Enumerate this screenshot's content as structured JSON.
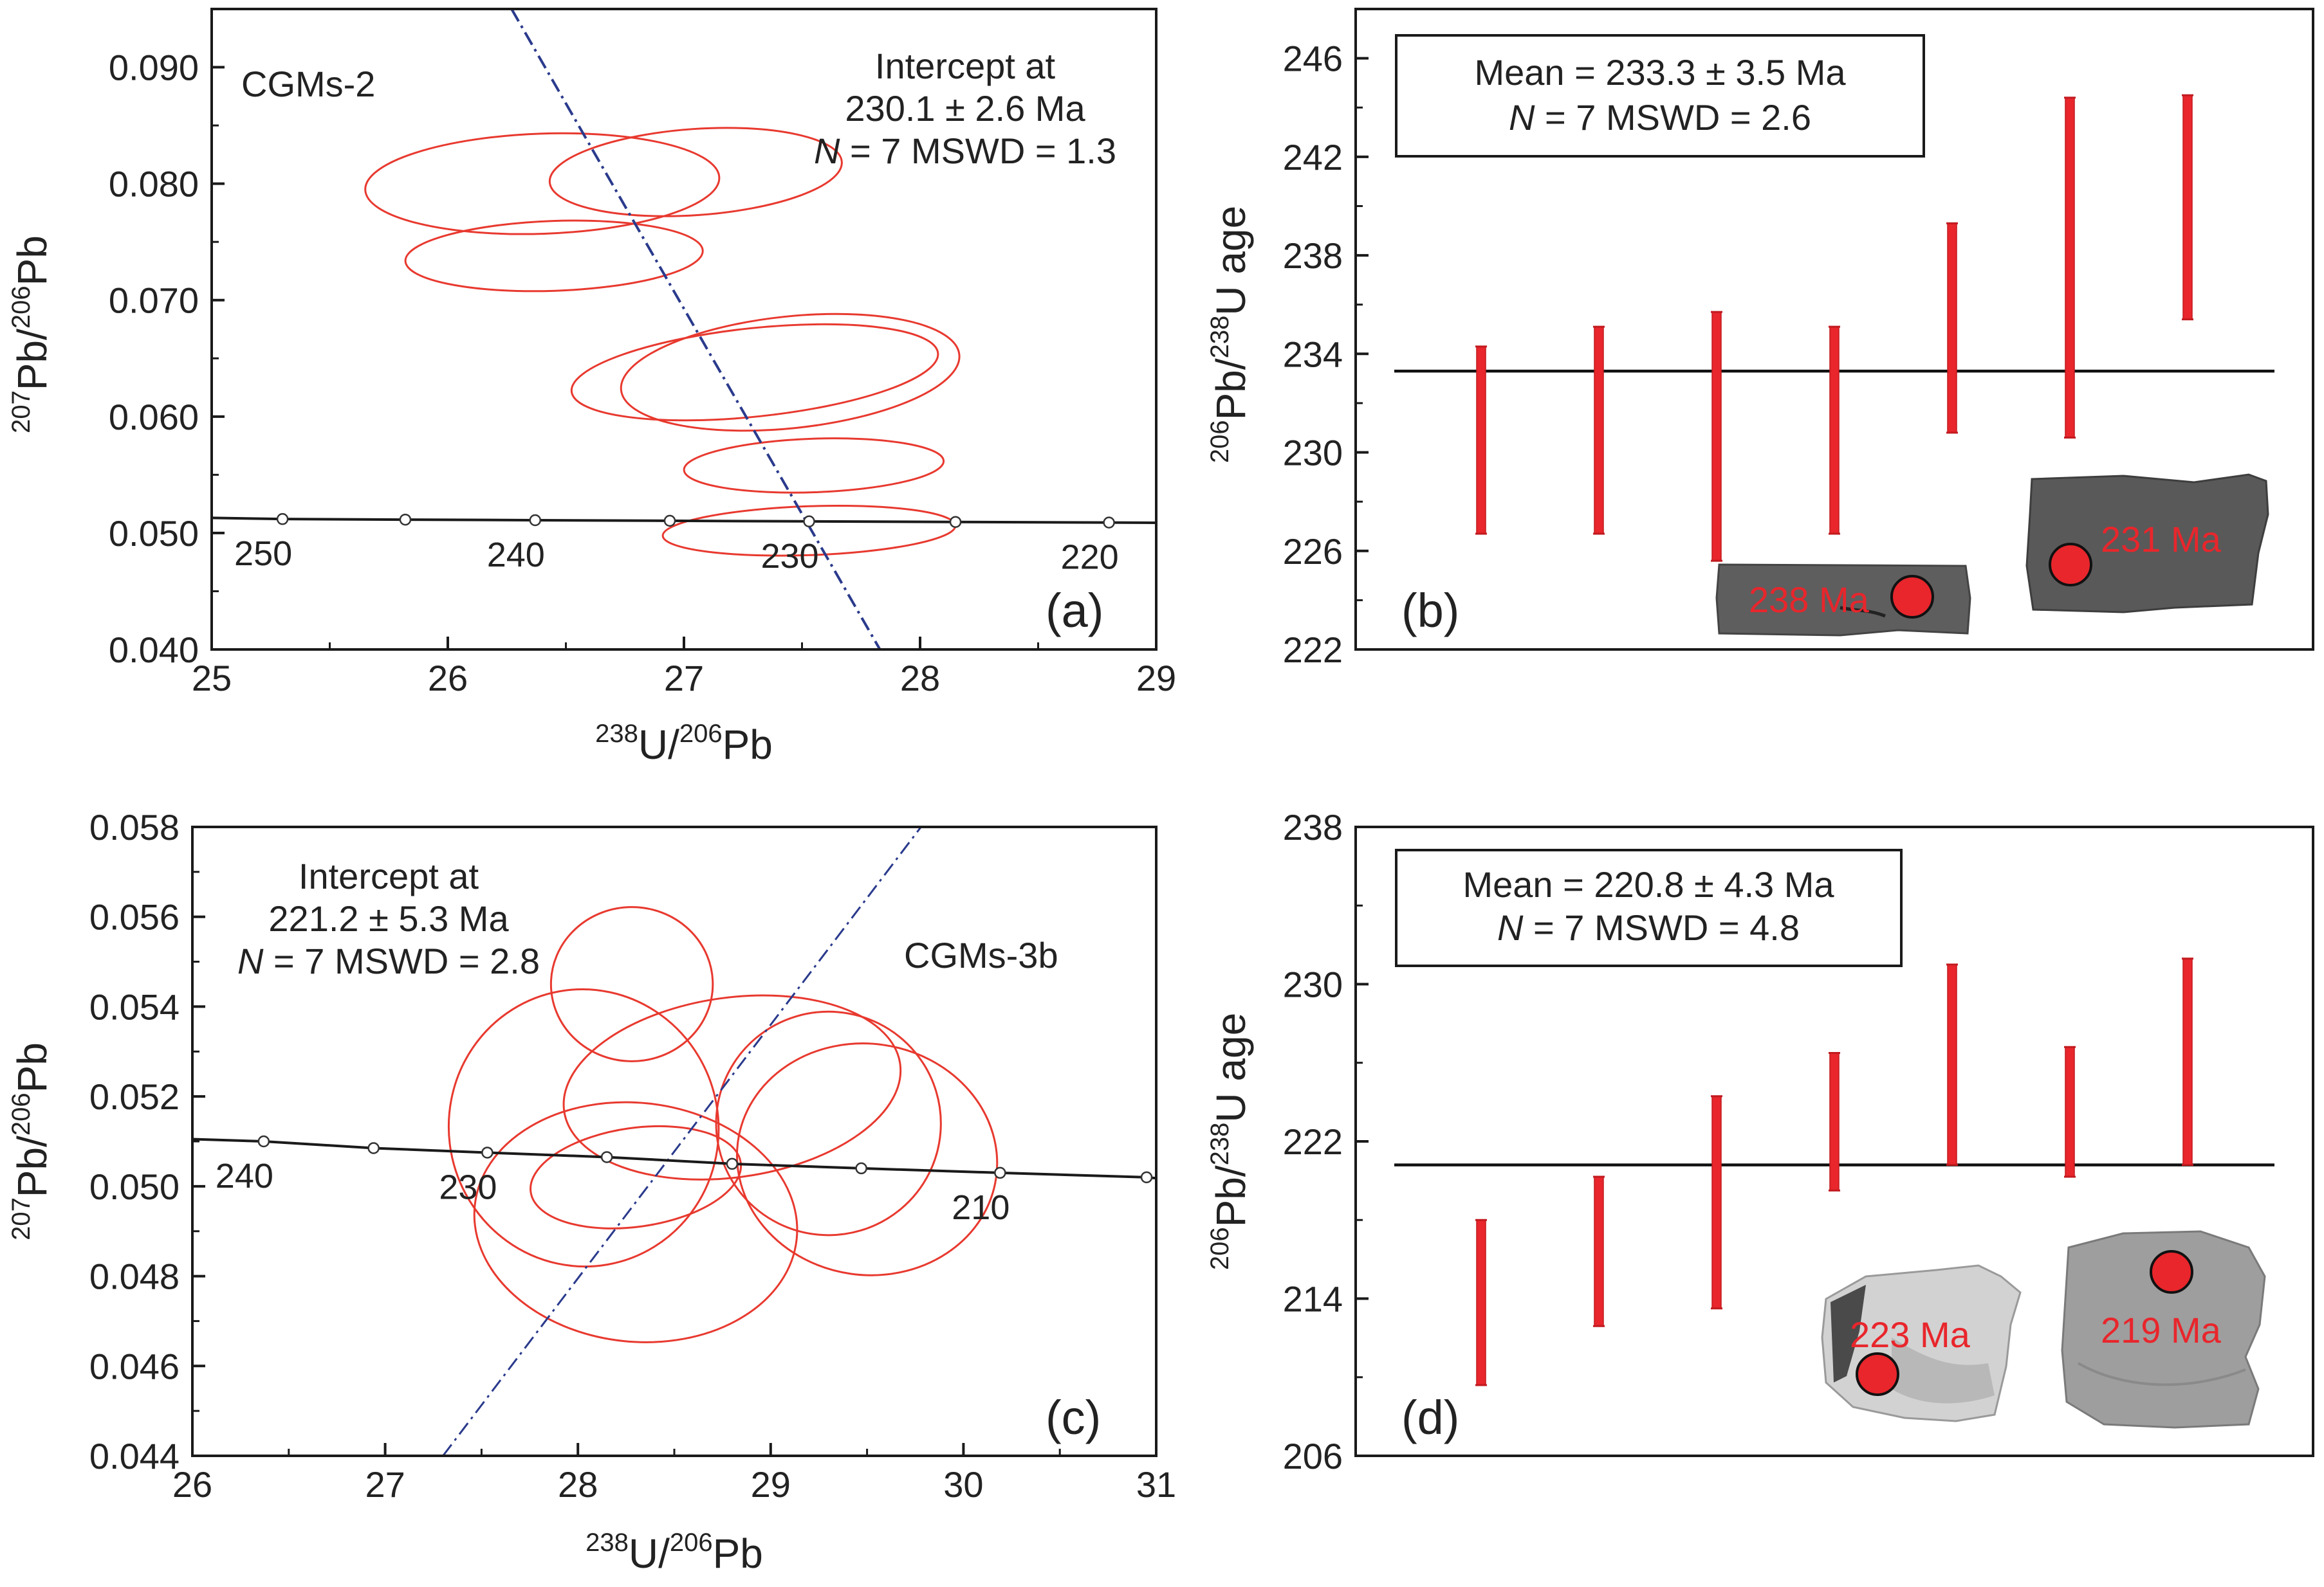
{
  "colors": {
    "ellipse": "#e8392f",
    "regression": "#2a3a8c",
    "concordia": "#1a1a1a",
    "errorbar": "#e8262c",
    "mean_line": "#111111",
    "grain_spot": "#e8262c",
    "grain_dark": "#5a5a5a",
    "grain_light": "#c8c8c8"
  },
  "chart_data": [
    {
      "panel": "(a)",
      "type": "scatter",
      "subtype": "tera-wasserburg-concordia",
      "sample": "CGMs-2",
      "xlabel": {
        "sup1": "238",
        "t1": "U/",
        "sup2": "206",
        "t2": "Pb"
      },
      "ylabel": {
        "sup1": "207",
        "t1": "Pb/",
        "sup2": "206",
        "t2": "Pb"
      },
      "xlim": [
        25,
        29
      ],
      "ylim": [
        0.04,
        0.095
      ],
      "xticks": [
        25,
        26,
        27,
        28,
        29
      ],
      "xtick_labels": [
        "25",
        "26",
        "27",
        "28",
        "29"
      ],
      "yticks": [
        0.04,
        0.05,
        0.06,
        0.07,
        0.08,
        0.09
      ],
      "ytick_labels": [
        "0.040",
        "0.050",
        "0.060",
        "0.070",
        "0.080",
        "0.090"
      ],
      "annotation": {
        "line1": "Intercept at",
        "line2": "230.1 ± 2.6 Ma",
        "n": "N",
        "line3": " = 7 MSWD = 1.3"
      },
      "panel_label": "(a)",
      "concordia": {
        "x": [
          25.0,
          25.3,
          25.82,
          26.37,
          26.94,
          27.53,
          28.15,
          28.8,
          29.0
        ],
        "y": [
          0.0513,
          0.0512,
          0.05115,
          0.0511,
          0.05105,
          0.051,
          0.05095,
          0.0509,
          0.05088
        ],
        "age_marks": [
          {
            "age": 250,
            "x": 25.3,
            "y": 0.0512,
            "label": "250"
          },
          {
            "age": 245,
            "x": 25.82,
            "y": 0.05115,
            "label": ""
          },
          {
            "age": 240,
            "x": 26.37,
            "y": 0.0511,
            "label": "240"
          },
          {
            "age": 235,
            "x": 26.94,
            "y": 0.05105,
            "label": ""
          },
          {
            "age": 230,
            "x": 27.53,
            "y": 0.051,
            "label": "230"
          },
          {
            "age": 225,
            "x": 28.15,
            "y": 0.05095,
            "label": ""
          },
          {
            "age": 220,
            "x": 28.8,
            "y": 0.0509,
            "label": "220"
          }
        ]
      },
      "regression": {
        "x1": 26.27,
        "y1": 0.095,
        "x2": 27.83,
        "y2": 0.04
      },
      "ellipses": [
        {
          "cx": 26.4,
          "cy": 0.08,
          "rx": 0.75,
          "ry": 0.0043,
          "rot": -2
        },
        {
          "cx": 27.05,
          "cy": 0.081,
          "rx": 0.62,
          "ry": 0.0037,
          "rot": -4
        },
        {
          "cx": 26.45,
          "cy": 0.0738,
          "rx": 0.63,
          "ry": 0.003,
          "rot": -2
        },
        {
          "cx": 27.3,
          "cy": 0.0638,
          "rx": 0.78,
          "ry": 0.0038,
          "rot": -6
        },
        {
          "cx": 27.45,
          "cy": 0.0638,
          "rx": 0.72,
          "ry": 0.0048,
          "rot": -6
        },
        {
          "cx": 27.55,
          "cy": 0.0558,
          "rx": 0.55,
          "ry": 0.0023,
          "rot": -2
        },
        {
          "cx": 27.53,
          "cy": 0.0502,
          "rx": 0.62,
          "ry": 0.0021,
          "rot": -2
        }
      ]
    },
    {
      "panel": "(b)",
      "type": "bar",
      "subtype": "weighted-mean-error-bars",
      "ylabel": {
        "sup1": "206",
        "t1": "Pb/",
        "sup2": "238",
        "t2": "U age"
      },
      "ylim": [
        222,
        248
      ],
      "yticks": [
        222,
        226,
        230,
        234,
        238,
        242,
        246
      ],
      "ytick_labels": [
        "222",
        "226",
        "230",
        "234",
        "238",
        "242",
        "246"
      ],
      "mean": 233.3,
      "mean_box": {
        "line1": "Mean = 233.3 ± 3.5 Ma",
        "n": "N",
        "line2": " = 7 MSWD = 2.6"
      },
      "panel_label": "(b)",
      "series": [
        {
          "name": "spot ages",
          "low": [
            226.7,
            226.7,
            225.6,
            226.7,
            230.8,
            230.6,
            235.4
          ],
          "high": [
            234.3,
            235.1,
            235.7,
            235.1,
            239.3,
            244.4,
            244.5
          ]
        }
      ],
      "grains": [
        {
          "label": "238 Ma",
          "tone": "dark"
        },
        {
          "label": "231 Ma",
          "tone": "dark"
        }
      ]
    },
    {
      "panel": "(c)",
      "type": "scatter",
      "subtype": "tera-wasserburg-concordia",
      "sample": "CGMs-3b",
      "xlabel": {
        "sup1": "238",
        "t1": "U/",
        "sup2": "206",
        "t2": "Pb"
      },
      "ylabel": {
        "sup1": "207",
        "t1": "Pb/",
        "sup2": "206",
        "t2": "Pb"
      },
      "xlim": [
        26,
        31
      ],
      "ylim": [
        0.044,
        0.058
      ],
      "xticks": [
        26,
        27,
        28,
        29,
        30,
        31
      ],
      "xtick_labels": [
        "26",
        "27",
        "28",
        "29",
        "30",
        "31"
      ],
      "yticks": [
        0.044,
        0.046,
        0.048,
        0.05,
        0.052,
        0.054,
        0.056,
        0.058
      ],
      "ytick_labels": [
        "0.044",
        "0.046",
        "0.048",
        "0.050",
        "0.052",
        "0.054",
        "0.056",
        "0.058"
      ],
      "annotation": {
        "line1": "Intercept at",
        "line2": "221.2 ± 5.3 Ma",
        "n": "N",
        "line3": " = 7 MSWD = 2.8"
      },
      "panel_label": "(c)",
      "concordia": {
        "x": [
          26.0,
          26.37,
          26.94,
          27.53,
          28.15,
          28.8,
          29.47,
          30.19,
          30.95,
          31.0
        ],
        "y": [
          0.05105,
          0.051,
          0.05085,
          0.05075,
          0.05065,
          0.0505,
          0.0504,
          0.0503,
          0.0502,
          0.05018
        ],
        "age_marks": [
          {
            "age": 240,
            "x": 26.37,
            "y": 0.051,
            "label": "240"
          },
          {
            "age": 235,
            "x": 26.94,
            "y": 0.05085,
            "label": ""
          },
          {
            "age": 230,
            "x": 27.53,
            "y": 0.05075,
            "label": "230"
          },
          {
            "age": 225,
            "x": 28.15,
            "y": 0.05065,
            "label": ""
          },
          {
            "age": 220,
            "x": 28.8,
            "y": 0.0505,
            "label": ""
          },
          {
            "age": 215,
            "x": 29.47,
            "y": 0.0504,
            "label": ""
          },
          {
            "age": 210,
            "x": 30.19,
            "y": 0.0503,
            "label": "210"
          },
          {
            "age": 205,
            "x": 30.95,
            "y": 0.0502,
            "label": ""
          }
        ]
      },
      "regression": {
        "x1": 27.3,
        "y1": 0.044,
        "x2": 29.78,
        "y2": 0.058
      },
      "ellipses": [
        {
          "cx": 28.3,
          "cy": 0.0492,
          "rx": 0.62,
          "ry": 0.0036,
          "rot": -84
        },
        {
          "cx": 28.03,
          "cy": 0.0513,
          "rx": 0.72,
          "ry": 0.003,
          "rot": -100
        },
        {
          "cx": 28.28,
          "cy": 0.0545,
          "rx": 0.4,
          "ry": 0.0018,
          "rot": -90
        },
        {
          "cx": 28.8,
          "cy": 0.0522,
          "rx": 0.88,
          "ry": 0.002,
          "rot": -8
        },
        {
          "cx": 29.5,
          "cy": 0.0506,
          "rx": 0.6,
          "ry": 0.0029,
          "rot": -82
        },
        {
          "cx": 29.3,
          "cy": 0.0514,
          "rx": 0.58,
          "ry": 0.0025,
          "rot": -85
        },
        {
          "cx": 28.3,
          "cy": 0.0502,
          "rx": 0.55,
          "ry": 0.0011,
          "rot": -8
        }
      ]
    },
    {
      "panel": "(d)",
      "type": "bar",
      "subtype": "weighted-mean-error-bars",
      "ylabel": {
        "sup1": "206",
        "t1": "Pb/",
        "sup2": "238",
        "t2": "U age"
      },
      "ylim": [
        206,
        238
      ],
      "yticks": [
        206,
        214,
        222,
        230,
        238
      ],
      "ytick_labels": [
        "206",
        "214",
        "222",
        "230",
        "238"
      ],
      "mean": 220.8,
      "mean_box": {
        "line1": "Mean = 220.8 ± 4.3 Ma",
        "n": "N",
        "line2": " = 7 MSWD = 4.8"
      },
      "panel_label": "(d)",
      "series": [
        {
          "name": "spot ages",
          "low": [
            209.6,
            212.6,
            213.5,
            219.5,
            220.8,
            220.2,
            220.8
          ],
          "high": [
            218.0,
            220.2,
            224.3,
            226.5,
            231.0,
            226.8,
            231.3
          ]
        }
      ],
      "grains": [
        {
          "label": "223 Ma",
          "tone": "light"
        },
        {
          "label": "219 Ma",
          "tone": "light"
        }
      ]
    }
  ]
}
